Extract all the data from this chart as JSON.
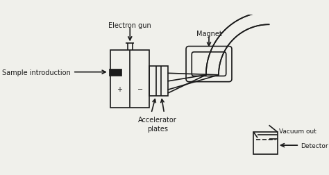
{
  "bg_color": "#f0f0eb",
  "line_color": "#1a1a1a",
  "lw": 1.2,
  "fig_width": 4.74,
  "fig_height": 2.53,
  "labels": {
    "electron_gun": "Electron gun",
    "magnet": "Magnet",
    "sample_intro": "Sample introduction",
    "accel_plates": "Accelerator\nplates",
    "vacuum_out": "Vacuum out",
    "detector": "Detector"
  },
  "font_size": 7.0
}
